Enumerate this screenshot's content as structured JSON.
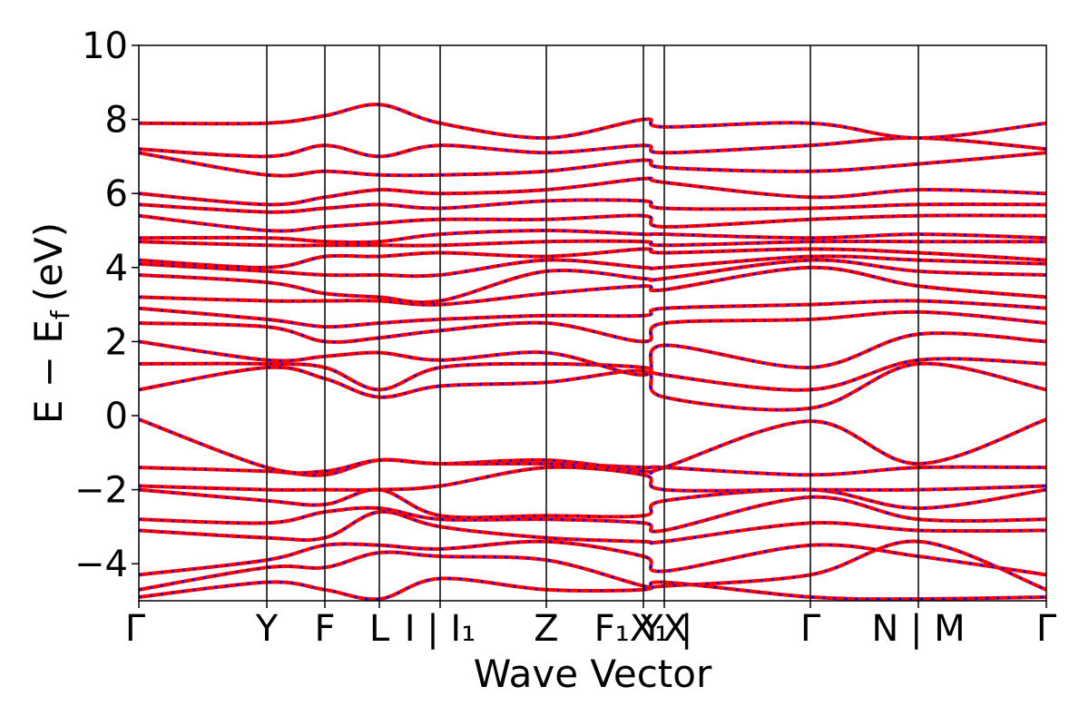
{
  "chart_data": {
    "type": "line",
    "title": "",
    "xlabel": "Wave Vector",
    "ylabel": "E − E",
    "ylabel_subscript": "f",
    "ylabel_unit": "(eV)",
    "ylim": [
      -5,
      10
    ],
    "yticks": [
      10,
      8,
      6,
      4,
      2,
      0,
      -2,
      -4
    ],
    "ytick_labels": [
      "10",
      "8",
      "6",
      "4",
      "2",
      "0",
      "−2",
      "−4"
    ],
    "xticks": [
      {
        "x": 0.0,
        "label": "Γ"
      },
      {
        "x": 0.141,
        "label": "Y"
      },
      {
        "x": 0.205,
        "label": "F"
      },
      {
        "x": 0.265,
        "label": "L"
      },
      {
        "x": 0.332,
        "label": "I | I₁"
      },
      {
        "x": 0.449,
        "label": "Z"
      },
      {
        "x": 0.556,
        "label": "F₁X₁ |"
      },
      {
        "x": 0.579,
        "label": "YX"
      },
      {
        "x": 0.74,
        "label": "Γ"
      },
      {
        "x": 0.859,
        "label": "N | M"
      },
      {
        "x": 1.0,
        "label": "Γ"
      }
    ],
    "grid": false,
    "series_styles": [
      {
        "color": "#ff0000",
        "style": "solid"
      },
      {
        "color": "#0000ff",
        "style": "dotted"
      }
    ],
    "bands": [
      {
        "x": [
          0,
          0.141,
          0.205,
          0.265,
          0.332,
          0.449,
          0.556,
          0.579,
          0.74,
          0.859,
          1.0
        ],
        "y": [
          -4.9,
          -4.5,
          -4.7,
          -4.95,
          -4.4,
          -4.7,
          -4.7,
          -4.5,
          -4.9,
          -4.95,
          -4.9
        ]
      },
      {
        "x": [
          0,
          0.141,
          0.205,
          0.265,
          0.332,
          0.449,
          0.556,
          0.579,
          0.74,
          0.859,
          1.0
        ],
        "y": [
          -4.7,
          -4.1,
          -4.1,
          -3.7,
          -3.8,
          -3.9,
          -4.6,
          -4.6,
          -4.3,
          -3.4,
          -4.7
        ]
      },
      {
        "x": [
          0,
          0.141,
          0.205,
          0.265,
          0.332,
          0.449,
          0.556,
          0.579,
          0.74,
          0.859,
          1.0
        ],
        "y": [
          -4.3,
          -3.9,
          -3.5,
          -3.5,
          -3.6,
          -3.4,
          -3.8,
          -4.2,
          -3.5,
          -3.8,
          -4.3
        ]
      },
      {
        "x": [
          0,
          0.141,
          0.205,
          0.265,
          0.332,
          0.449,
          0.556,
          0.579,
          0.74,
          0.859,
          1.0
        ],
        "y": [
          -3.1,
          -3.3,
          -3.3,
          -2.6,
          -3.0,
          -3.3,
          -3.4,
          -3.4,
          -2.9,
          -3.1,
          -3.1
        ]
      },
      {
        "x": [
          0,
          0.141,
          0.205,
          0.265,
          0.332,
          0.449,
          0.556,
          0.579,
          0.74,
          0.859,
          1.0
        ],
        "y": [
          -2.8,
          -2.9,
          -2.6,
          -2.5,
          -2.8,
          -2.8,
          -2.9,
          -3.1,
          -2.2,
          -2.8,
          -2.8
        ]
      },
      {
        "x": [
          0,
          0.141,
          0.205,
          0.265,
          0.332,
          0.449,
          0.556,
          0.579,
          0.74,
          0.859,
          1.0
        ],
        "y": [
          -2.0,
          -2.3,
          -2.4,
          -2.0,
          -2.7,
          -2.7,
          -2.7,
          -2.3,
          -2.0,
          -2.5,
          -2.0
        ]
      },
      {
        "x": [
          0,
          0.141,
          0.205,
          0.265,
          0.332,
          0.449,
          0.556,
          0.579,
          0.74,
          0.859,
          1.0
        ],
        "y": [
          -1.9,
          -2.0,
          -2.0,
          -2.0,
          -1.9,
          -1.4,
          -1.6,
          -2.0,
          -2.0,
          -2.0,
          -1.9
        ]
      },
      {
        "x": [
          0,
          0.141,
          0.205,
          0.265,
          0.332,
          0.449,
          0.556,
          0.579,
          0.74,
          0.859,
          1.0
        ],
        "y": [
          -1.4,
          -1.5,
          -1.6,
          -1.2,
          -1.3,
          -1.3,
          -1.4,
          -1.4,
          -1.6,
          -1.4,
          -1.4
        ]
      },
      {
        "x": [
          0,
          0.141,
          0.205,
          0.265,
          0.332,
          0.449,
          0.556,
          0.579,
          0.74,
          0.859,
          1.0
        ],
        "y": [
          -0.1,
          -1.4,
          -1.5,
          -1.2,
          -1.3,
          -1.2,
          -1.5,
          -1.4,
          -0.15,
          -1.3,
          -0.1
        ]
      },
      {
        "x": [
          0,
          0.141,
          0.205,
          0.265,
          0.332,
          0.449,
          0.556,
          0.579,
          0.74,
          0.859,
          1.0
        ],
        "y": [
          0.7,
          1.3,
          1.0,
          0.5,
          0.8,
          0.9,
          1.2,
          0.5,
          0.2,
          1.4,
          0.7
        ]
      },
      {
        "x": [
          0,
          0.141,
          0.205,
          0.265,
          0.332,
          0.449,
          0.556,
          0.579,
          0.74,
          0.859,
          1.0
        ],
        "y": [
          1.4,
          1.4,
          1.3,
          0.7,
          1.3,
          1.4,
          1.3,
          1.1,
          0.7,
          1.5,
          1.4
        ]
      },
      {
        "x": [
          0,
          0.141,
          0.205,
          0.265,
          0.332,
          0.449,
          0.556,
          0.579,
          0.74,
          0.859,
          1.0
        ],
        "y": [
          2.0,
          1.5,
          1.6,
          1.7,
          1.5,
          1.7,
          1.1,
          1.9,
          1.3,
          2.2,
          2.0
        ]
      },
      {
        "x": [
          0,
          0.141,
          0.205,
          0.265,
          0.332,
          0.449,
          0.556,
          0.579,
          0.74,
          0.859,
          1.0
        ],
        "y": [
          2.5,
          2.4,
          2.0,
          2.1,
          2.3,
          2.5,
          2.0,
          2.5,
          2.6,
          2.8,
          2.5
        ]
      },
      {
        "x": [
          0,
          0.141,
          0.205,
          0.265,
          0.332,
          0.449,
          0.556,
          0.579,
          0.74,
          0.859,
          1.0
        ],
        "y": [
          2.9,
          2.6,
          2.4,
          2.5,
          2.6,
          2.7,
          2.7,
          2.9,
          3.0,
          3.1,
          2.9
        ]
      },
      {
        "x": [
          0,
          0.141,
          0.205,
          0.265,
          0.332,
          0.449,
          0.556,
          0.579,
          0.74,
          0.859,
          1.0
        ],
        "y": [
          3.2,
          3.1,
          3.1,
          3.1,
          3.0,
          3.3,
          3.5,
          3.4,
          4.0,
          3.5,
          3.2
        ]
      },
      {
        "x": [
          0,
          0.141,
          0.205,
          0.265,
          0.332,
          0.449,
          0.556,
          0.579,
          0.74,
          0.859,
          1.0
        ],
        "y": [
          3.8,
          3.6,
          3.3,
          3.2,
          3.1,
          3.9,
          3.7,
          3.7,
          4.2,
          3.9,
          3.8
        ]
      },
      {
        "x": [
          0,
          0.141,
          0.205,
          0.265,
          0.332,
          0.449,
          0.556,
          0.579,
          0.74,
          0.859,
          1.0
        ],
        "y": [
          4.1,
          3.9,
          3.8,
          3.8,
          3.8,
          4.2,
          4.0,
          4.0,
          4.3,
          4.2,
          4.1
        ]
      },
      {
        "x": [
          0,
          0.141,
          0.205,
          0.265,
          0.332,
          0.449,
          0.556,
          0.579,
          0.74,
          0.859,
          1.0
        ],
        "y": [
          4.2,
          4.0,
          4.3,
          4.3,
          4.4,
          4.3,
          4.5,
          4.4,
          4.5,
          4.4,
          4.2
        ]
      },
      {
        "x": [
          0,
          0.141,
          0.205,
          0.265,
          0.332,
          0.449,
          0.556,
          0.579,
          0.74,
          0.859,
          1.0
        ],
        "y": [
          4.7,
          4.6,
          4.6,
          4.6,
          4.6,
          4.7,
          4.7,
          4.6,
          4.7,
          4.7,
          4.7
        ]
      },
      {
        "x": [
          0,
          0.141,
          0.205,
          0.265,
          0.332,
          0.449,
          0.556,
          0.579,
          0.74,
          0.859,
          1.0
        ],
        "y": [
          4.8,
          4.8,
          4.7,
          4.7,
          4.9,
          5.0,
          4.9,
          4.9,
          4.8,
          4.9,
          4.8
        ]
      },
      {
        "x": [
          0,
          0.141,
          0.205,
          0.265,
          0.332,
          0.449,
          0.556,
          0.579,
          0.74,
          0.859,
          1.0
        ],
        "y": [
          5.4,
          5.0,
          5.1,
          5.2,
          5.3,
          5.3,
          5.4,
          5.1,
          5.3,
          5.4,
          5.4
        ]
      },
      {
        "x": [
          0,
          0.141,
          0.205,
          0.265,
          0.332,
          0.449,
          0.556,
          0.579,
          0.74,
          0.859,
          1.0
        ],
        "y": [
          5.7,
          5.5,
          5.6,
          5.7,
          5.6,
          5.8,
          5.8,
          5.6,
          5.6,
          5.7,
          5.7
        ]
      },
      {
        "x": [
          0,
          0.141,
          0.205,
          0.265,
          0.332,
          0.449,
          0.556,
          0.579,
          0.74,
          0.859,
          1.0
        ],
        "y": [
          6.0,
          5.7,
          5.9,
          6.1,
          6.0,
          6.1,
          6.4,
          6.3,
          5.9,
          6.1,
          6.0
        ]
      },
      {
        "x": [
          0,
          0.141,
          0.205,
          0.265,
          0.332,
          0.449,
          0.556,
          0.579,
          0.74,
          0.859,
          1.0
        ],
        "y": [
          7.1,
          6.5,
          6.6,
          6.5,
          6.5,
          6.6,
          6.9,
          6.7,
          6.6,
          6.8,
          7.1
        ]
      },
      {
        "x": [
          0,
          0.141,
          0.205,
          0.265,
          0.332,
          0.449,
          0.556,
          0.579,
          0.74,
          0.859,
          1.0
        ],
        "y": [
          7.2,
          7.0,
          7.3,
          7.0,
          7.3,
          7.1,
          7.3,
          7.1,
          7.3,
          7.5,
          7.2
        ]
      },
      {
        "x": [
          0,
          0.141,
          0.205,
          0.265,
          0.332,
          0.449,
          0.556,
          0.579,
          0.74,
          0.859,
          1.0
        ],
        "y": [
          7.9,
          7.9,
          8.1,
          8.4,
          7.9,
          7.5,
          8.0,
          7.8,
          7.9,
          7.5,
          7.9
        ]
      }
    ]
  }
}
